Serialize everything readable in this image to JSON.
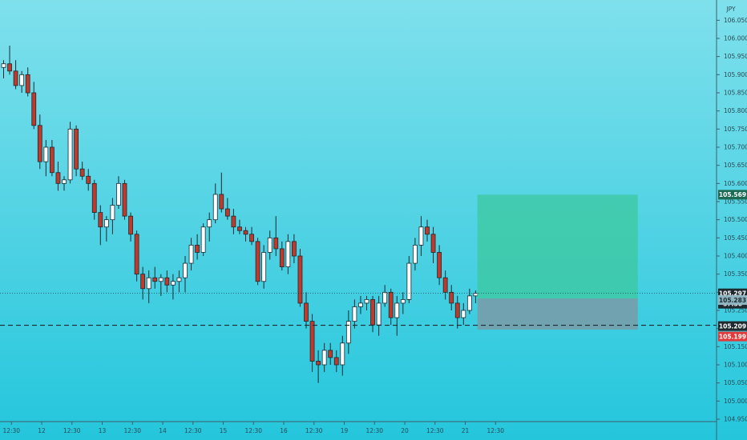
{
  "chart_data": {
    "type": "candlestick",
    "currency_label": "JPY",
    "ylim": [
      104.95,
      106.075
    ],
    "y_ticks": [
      "106.050",
      "106.000",
      "105.950",
      "105.900",
      "105.850",
      "105.800",
      "105.750",
      "105.700",
      "105.650",
      "105.600",
      "105.550",
      "105.500",
      "105.450",
      "105.400",
      "105.350",
      "105.300",
      "105.250",
      "105.200",
      "105.150",
      "105.100",
      "105.050",
      "105.000",
      "104.950"
    ],
    "x_ticks": [
      {
        "label": "12:30",
        "x": 0.5
      },
      {
        "label": "12",
        "x": 5.5
      },
      {
        "label": "12:30",
        "x": 10.5
      },
      {
        "label": "13",
        "x": 15.5
      },
      {
        "label": "12:30",
        "x": 20.5
      },
      {
        "label": "14",
        "x": 25.5
      },
      {
        "label": "12:30",
        "x": 30.5
      },
      {
        "label": "15",
        "x": 35.5
      },
      {
        "label": "12:30",
        "x": 40.5
      },
      {
        "label": "16",
        "x": 45.5
      },
      {
        "label": "12:30",
        "x": 50.5
      },
      {
        "label": "19",
        "x": 55.5
      },
      {
        "label": "12:30",
        "x": 60.5
      },
      {
        "label": "20",
        "x": 65.5
      },
      {
        "label": "12:30",
        "x": 70.5
      },
      {
        "label": "21",
        "x": 75.5
      },
      {
        "label": "12:30",
        "x": 80.5
      }
    ],
    "candles": [
      {
        "o": 105.92,
        "h": 105.94,
        "l": 105.89,
        "c": 105.93
      },
      {
        "o": 105.93,
        "h": 105.98,
        "l": 105.9,
        "c": 105.91
      },
      {
        "o": 105.91,
        "h": 105.94,
        "l": 105.86,
        "c": 105.87
      },
      {
        "o": 105.87,
        "h": 105.91,
        "l": 105.85,
        "c": 105.9
      },
      {
        "o": 105.9,
        "h": 105.92,
        "l": 105.84,
        "c": 105.85
      },
      {
        "o": 105.85,
        "h": 105.88,
        "l": 105.75,
        "c": 105.76
      },
      {
        "o": 105.76,
        "h": 105.79,
        "l": 105.64,
        "c": 105.66
      },
      {
        "o": 105.66,
        "h": 105.72,
        "l": 105.62,
        "c": 105.7
      },
      {
        "o": 105.7,
        "h": 105.72,
        "l": 105.62,
        "c": 105.63
      },
      {
        "o": 105.63,
        "h": 105.66,
        "l": 105.58,
        "c": 105.6
      },
      {
        "o": 105.6,
        "h": 105.62,
        "l": 105.58,
        "c": 105.61
      },
      {
        "o": 105.61,
        "h": 105.77,
        "l": 105.6,
        "c": 105.75
      },
      {
        "o": 105.75,
        "h": 105.76,
        "l": 105.62,
        "c": 105.64
      },
      {
        "o": 105.64,
        "h": 105.66,
        "l": 105.61,
        "c": 105.62
      },
      {
        "o": 105.62,
        "h": 105.64,
        "l": 105.58,
        "c": 105.6
      },
      {
        "o": 105.6,
        "h": 105.61,
        "l": 105.5,
        "c": 105.52
      },
      {
        "o": 105.52,
        "h": 105.54,
        "l": 105.43,
        "c": 105.48
      },
      {
        "o": 105.48,
        "h": 105.51,
        "l": 105.44,
        "c": 105.5
      },
      {
        "o": 105.5,
        "h": 105.56,
        "l": 105.46,
        "c": 105.54
      },
      {
        "o": 105.54,
        "h": 105.62,
        "l": 105.53,
        "c": 105.6
      },
      {
        "o": 105.6,
        "h": 105.61,
        "l": 105.5,
        "c": 105.51
      },
      {
        "o": 105.51,
        "h": 105.52,
        "l": 105.44,
        "c": 105.46
      },
      {
        "o": 105.46,
        "h": 105.47,
        "l": 105.33,
        "c": 105.35
      },
      {
        "o": 105.35,
        "h": 105.37,
        "l": 105.28,
        "c": 105.31
      },
      {
        "o": 105.31,
        "h": 105.36,
        "l": 105.27,
        "c": 105.34
      },
      {
        "o": 105.34,
        "h": 105.37,
        "l": 105.31,
        "c": 105.33
      },
      {
        "o": 105.33,
        "h": 105.35,
        "l": 105.29,
        "c": 105.34
      },
      {
        "o": 105.34,
        "h": 105.36,
        "l": 105.3,
        "c": 105.32
      },
      {
        "o": 105.32,
        "h": 105.35,
        "l": 105.28,
        "c": 105.33
      },
      {
        "o": 105.33,
        "h": 105.36,
        "l": 105.3,
        "c": 105.34
      },
      {
        "o": 105.34,
        "h": 105.4,
        "l": 105.3,
        "c": 105.38
      },
      {
        "o": 105.38,
        "h": 105.45,
        "l": 105.36,
        "c": 105.43
      },
      {
        "o": 105.43,
        "h": 105.46,
        "l": 105.39,
        "c": 105.41
      },
      {
        "o": 105.41,
        "h": 105.49,
        "l": 105.4,
        "c": 105.48
      },
      {
        "o": 105.48,
        "h": 105.52,
        "l": 105.44,
        "c": 105.5
      },
      {
        "o": 105.5,
        "h": 105.6,
        "l": 105.49,
        "c": 105.57
      },
      {
        "o": 105.57,
        "h": 105.63,
        "l": 105.52,
        "c": 105.53
      },
      {
        "o": 105.53,
        "h": 105.56,
        "l": 105.5,
        "c": 105.51
      },
      {
        "o": 105.51,
        "h": 105.53,
        "l": 105.46,
        "c": 105.48
      },
      {
        "o": 105.48,
        "h": 105.5,
        "l": 105.46,
        "c": 105.47
      },
      {
        "o": 105.47,
        "h": 105.48,
        "l": 105.44,
        "c": 105.46
      },
      {
        "o": 105.46,
        "h": 105.48,
        "l": 105.43,
        "c": 105.44
      },
      {
        "o": 105.44,
        "h": 105.45,
        "l": 105.32,
        "c": 105.33
      },
      {
        "o": 105.33,
        "h": 105.43,
        "l": 105.31,
        "c": 105.41
      },
      {
        "o": 105.41,
        "h": 105.47,
        "l": 105.39,
        "c": 105.45
      },
      {
        "o": 105.45,
        "h": 105.51,
        "l": 105.4,
        "c": 105.42
      },
      {
        "o": 105.42,
        "h": 105.44,
        "l": 105.36,
        "c": 105.37
      },
      {
        "o": 105.37,
        "h": 105.46,
        "l": 105.35,
        "c": 105.44
      },
      {
        "o": 105.44,
        "h": 105.46,
        "l": 105.38,
        "c": 105.4
      },
      {
        "o": 105.4,
        "h": 105.42,
        "l": 105.26,
        "c": 105.27
      },
      {
        "o": 105.27,
        "h": 105.3,
        "l": 105.2,
        "c": 105.22
      },
      {
        "o": 105.22,
        "h": 105.24,
        "l": 105.08,
        "c": 105.11
      },
      {
        "o": 105.11,
        "h": 105.14,
        "l": 105.05,
        "c": 105.1
      },
      {
        "o": 105.1,
        "h": 105.16,
        "l": 105.08,
        "c": 105.14
      },
      {
        "o": 105.14,
        "h": 105.16,
        "l": 105.1,
        "c": 105.12
      },
      {
        "o": 105.12,
        "h": 105.14,
        "l": 105.08,
        "c": 105.1
      },
      {
        "o": 105.1,
        "h": 105.18,
        "l": 105.07,
        "c": 105.16
      },
      {
        "o": 105.16,
        "h": 105.25,
        "l": 105.13,
        "c": 105.22
      },
      {
        "o": 105.22,
        "h": 105.28,
        "l": 105.2,
        "c": 105.26
      },
      {
        "o": 105.26,
        "h": 105.29,
        "l": 105.24,
        "c": 105.27
      },
      {
        "o": 105.27,
        "h": 105.29,
        "l": 105.25,
        "c": 105.28
      },
      {
        "o": 105.28,
        "h": 105.29,
        "l": 105.19,
        "c": 105.21
      },
      {
        "o": 105.21,
        "h": 105.29,
        "l": 105.18,
        "c": 105.27
      },
      {
        "o": 105.27,
        "h": 105.32,
        "l": 105.26,
        "c": 105.3
      },
      {
        "o": 105.3,
        "h": 105.31,
        "l": 105.21,
        "c": 105.23
      },
      {
        "o": 105.23,
        "h": 105.29,
        "l": 105.18,
        "c": 105.27
      },
      {
        "o": 105.27,
        "h": 105.3,
        "l": 105.24,
        "c": 105.28
      },
      {
        "o": 105.28,
        "h": 105.4,
        "l": 105.27,
        "c": 105.38
      },
      {
        "o": 105.38,
        "h": 105.45,
        "l": 105.36,
        "c": 105.43
      },
      {
        "o": 105.43,
        "h": 105.51,
        "l": 105.4,
        "c": 105.48
      },
      {
        "o": 105.48,
        "h": 105.5,
        "l": 105.44,
        "c": 105.46
      },
      {
        "o": 105.46,
        "h": 105.48,
        "l": 105.38,
        "c": 105.41
      },
      {
        "o": 105.41,
        "h": 105.43,
        "l": 105.32,
        "c": 105.34
      },
      {
        "o": 105.34,
        "h": 105.36,
        "l": 105.28,
        "c": 105.3
      },
      {
        "o": 105.3,
        "h": 105.32,
        "l": 105.25,
        "c": 105.27
      },
      {
        "o": 105.27,
        "h": 105.29,
        "l": 105.2,
        "c": 105.23
      },
      {
        "o": 105.23,
        "h": 105.27,
        "l": 105.21,
        "c": 105.25
      },
      {
        "o": 105.25,
        "h": 105.31,
        "l": 105.24,
        "c": 105.29
      },
      {
        "o": 105.29,
        "h": 105.305,
        "l": 105.27,
        "c": 105.297
      }
    ],
    "position_tool": {
      "x_start": 78.3,
      "x_end": 104.8,
      "target": 105.569,
      "entry": 105.283,
      "stop": 105.209,
      "target_color": "#3cc89e",
      "stop_color": "#7a9aa6"
    },
    "current_price_line": 105.297,
    "dashed_level": 105.209
  },
  "price_axis": {
    "target_label": "105.569",
    "current_label": "105.297",
    "countdown_label": "57:56",
    "entry_label": "105.283",
    "stop_label": "105.209",
    "stop_red_label": "105.199"
  },
  "colors": {
    "bull": "#ffffff",
    "bear": "#c0392b",
    "wick": "#1e2a30",
    "target_badge": "#1d6b55",
    "current_badge": "#1e2a30",
    "red_badge": "#e23b3b"
  }
}
